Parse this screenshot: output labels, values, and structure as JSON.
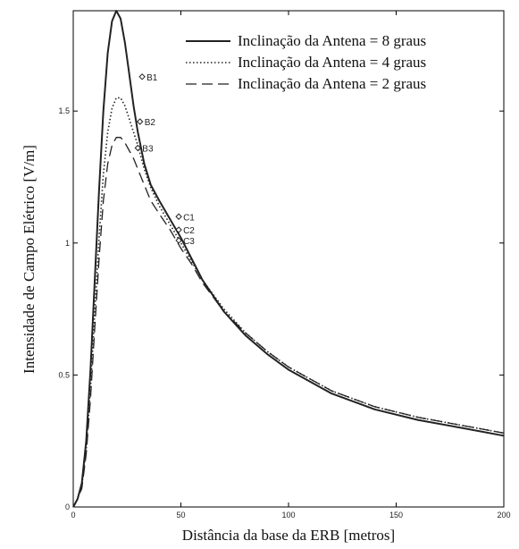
{
  "chart_data": {
    "type": "line",
    "xlabel": "Distância da base da ERB [metros]",
    "ylabel": "Intensidade de Campo Elétrico [V/m]",
    "xlim": [
      0,
      200
    ],
    "ylim": [
      0,
      1.88
    ],
    "x_ticks": [
      0,
      50,
      100,
      150,
      200
    ],
    "x_tick_labels": [
      "0",
      "50",
      "100",
      "150",
      "200"
    ],
    "y_ticks": [
      0,
      0.5,
      1,
      1.5
    ],
    "y_tick_labels": [
      "0",
      "0.5",
      "1",
      "1.5"
    ],
    "grid": false,
    "legend_position": "top-right",
    "series": [
      {
        "name": "Inclinação da Antena = 8 graus",
        "style": "solid",
        "x": [
          0,
          2,
          4,
          6,
          8,
          10,
          12,
          14,
          16,
          18,
          20,
          22,
          24,
          26,
          28,
          30,
          33,
          36,
          40,
          45,
          50,
          55,
          60,
          70,
          80,
          90,
          100,
          120,
          140,
          160,
          180,
          200
        ],
        "y": [
          0,
          0.03,
          0.09,
          0.25,
          0.52,
          0.86,
          1.2,
          1.5,
          1.72,
          1.84,
          1.88,
          1.85,
          1.76,
          1.64,
          1.52,
          1.42,
          1.3,
          1.22,
          1.16,
          1.09,
          1.02,
          0.94,
          0.86,
          0.74,
          0.65,
          0.58,
          0.52,
          0.43,
          0.37,
          0.33,
          0.3,
          0.27
        ]
      },
      {
        "name": "Inclinação da Antena = 4 graus",
        "style": "dotted",
        "x": [
          0,
          2,
          4,
          6,
          8,
          10,
          12,
          14,
          16,
          18,
          20,
          22,
          24,
          26,
          28,
          30,
          33,
          36,
          40,
          45,
          50,
          55,
          60,
          70,
          80,
          90,
          100,
          120,
          140,
          160,
          180,
          200
        ],
        "y": [
          0,
          0.03,
          0.08,
          0.22,
          0.45,
          0.74,
          1.02,
          1.26,
          1.42,
          1.51,
          1.55,
          1.55,
          1.52,
          1.47,
          1.42,
          1.37,
          1.28,
          1.21,
          1.14,
          1.07,
          1.0,
          0.93,
          0.86,
          0.75,
          0.66,
          0.59,
          0.53,
          0.44,
          0.38,
          0.34,
          0.31,
          0.28
        ]
      },
      {
        "name": "Inclinação da Antena = 2 graus",
        "style": "dashed",
        "x": [
          0,
          2,
          4,
          6,
          8,
          10,
          12,
          14,
          16,
          18,
          20,
          22,
          24,
          26,
          28,
          30,
          33,
          36,
          40,
          45,
          50,
          55,
          60,
          70,
          80,
          90,
          100,
          120,
          140,
          160,
          180,
          200
        ],
        "y": [
          0,
          0.03,
          0.07,
          0.2,
          0.41,
          0.68,
          0.94,
          1.16,
          1.3,
          1.37,
          1.4,
          1.4,
          1.38,
          1.35,
          1.32,
          1.28,
          1.22,
          1.16,
          1.11,
          1.05,
          0.98,
          0.92,
          0.85,
          0.74,
          0.66,
          0.59,
          0.53,
          0.44,
          0.38,
          0.34,
          0.31,
          0.28
        ]
      }
    ],
    "annotations": [
      {
        "label": "B1",
        "x": 32,
        "y": 1.63
      },
      {
        "label": "B2",
        "x": 31,
        "y": 1.46
      },
      {
        "label": "B3",
        "x": 30,
        "y": 1.36
      },
      {
        "label": "C1",
        "x": 49,
        "y": 1.1
      },
      {
        "label": "C2",
        "x": 49,
        "y": 1.05
      },
      {
        "label": "C3",
        "x": 49,
        "y": 1.01
      }
    ]
  }
}
